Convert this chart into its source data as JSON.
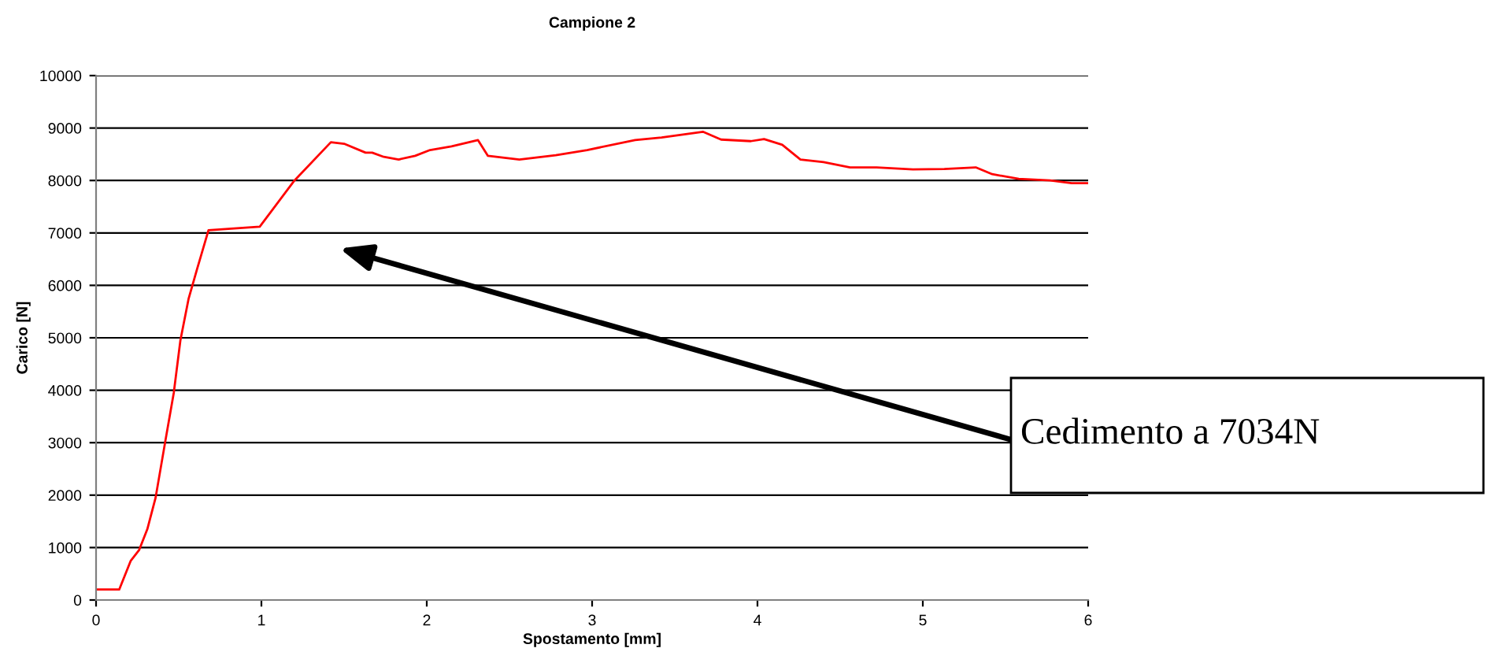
{
  "chart_data": {
    "type": "line",
    "title": "Campione 2",
    "xlabel": "Spostamento [mm]",
    "ylabel": "Carico [N]",
    "x": [
      0,
      0.14,
      0.21,
      0.26,
      0.31,
      0.36,
      0.42,
      0.47,
      0.51,
      0.56,
      0.61,
      0.68,
      0.99,
      1.2,
      1.42,
      1.5,
      1.63,
      1.67,
      1.74,
      1.83,
      1.93,
      2.02,
      2.15,
      2.31,
      2.37,
      2.56,
      2.78,
      2.97,
      3.26,
      3.42,
      3.67,
      3.78,
      3.96,
      4.04,
      4.15,
      4.26,
      4.4,
      4.56,
      4.72,
      4.94,
      5.13,
      5.32,
      5.42,
      5.58,
      5.77,
      5.9,
      6
    ],
    "series": [
      {
        "color": "#ff0000",
        "values": [
          200,
          200,
          750,
          950,
          1350,
          1950,
          3050,
          3950,
          4950,
          5750,
          6300,
          7050,
          7120,
          8000,
          8730,
          8700,
          8530,
          8530,
          8450,
          8400,
          8470,
          8580,
          8650,
          8770,
          8470,
          8400,
          8480,
          8580,
          8770,
          8820,
          8930,
          8780,
          8750,
          8790,
          8680,
          8400,
          8350,
          8250,
          8250,
          8210,
          8220,
          8250,
          8120,
          8030,
          8000,
          7950,
          7950
        ]
      }
    ],
    "xlim": [
      0,
      6
    ],
    "xticks": [
      0,
      1,
      2,
      3,
      4,
      5,
      6
    ],
    "ylim": [
      0,
      10000
    ],
    "yticks": [
      0,
      1000,
      2000,
      3000,
      4000,
      5000,
      6000,
      7000,
      8000,
      9000,
      10000
    ],
    "grid": "y",
    "legend": false,
    "marker": "none",
    "line_style": "solid",
    "annotations": [
      "Cedimento a 7034N"
    ]
  }
}
